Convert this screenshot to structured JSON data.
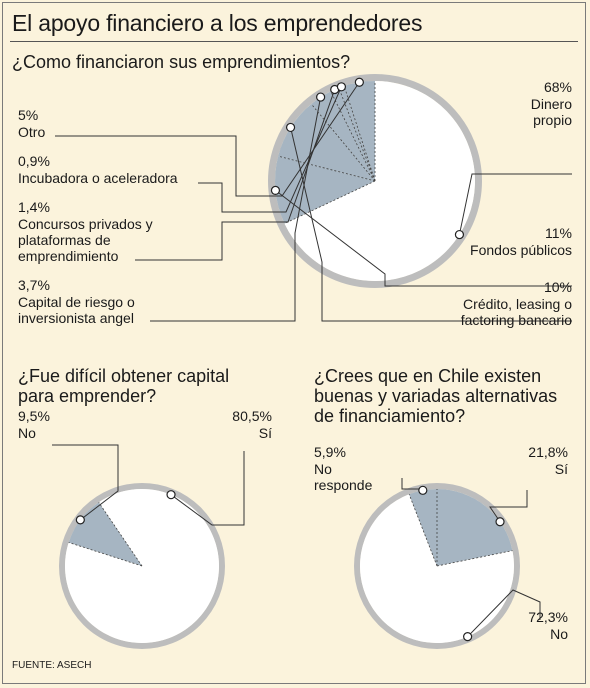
{
  "title": "El apoyo financiero a los emprendedores",
  "source": "FUENTE: ASECH",
  "colors": {
    "background": "#fbf3dc",
    "slice_shaded": "#a6b5c2",
    "slice_white": "#ffffff",
    "ring": "#bdbdbd",
    "leader": "#333333"
  },
  "chart_data": [
    {
      "type": "pie",
      "question": "¿Como financiaron sus emprendimientos?",
      "slices": [
        {
          "label": "Dinero propio",
          "value": 68,
          "value_text": "68%"
        },
        {
          "label": "Fondos públicos",
          "value": 11,
          "value_text": "11%"
        },
        {
          "label": "Crédito, leasing o factoring bancario",
          "value": 10,
          "value_text": "10%"
        },
        {
          "label": "Capital de riesgo o inversionista angel",
          "value": 3.7,
          "value_text": "3,7%"
        },
        {
          "label": "Concursos privados y plataformas de emprendimiento",
          "value": 1.4,
          "value_text": "1,4%"
        },
        {
          "label": "Incubadora o aceleradora",
          "value": 0.9,
          "value_text": "0,9%"
        },
        {
          "label": "Otro",
          "value": 5,
          "value_text": "5%"
        }
      ]
    },
    {
      "type": "pie",
      "question": "¿Fue difícil obtener capital para emprender?",
      "slices": [
        {
          "label": "Sí",
          "value": 80.5,
          "value_text": "80,5%"
        },
        {
          "label": "No",
          "value": 9.5,
          "value_text": "9,5%"
        }
      ]
    },
    {
      "type": "pie",
      "question": "¿Crees que en Chile existen buenas y variadas alternativas de financiamiento?",
      "slices": [
        {
          "label": "Sí",
          "value": 21.8,
          "value_text": "21,8%"
        },
        {
          "label": "No",
          "value": 72.3,
          "value_text": "72,3%"
        },
        {
          "label": "No responde",
          "value": 5.9,
          "value_text": "5,9%"
        }
      ]
    }
  ]
}
